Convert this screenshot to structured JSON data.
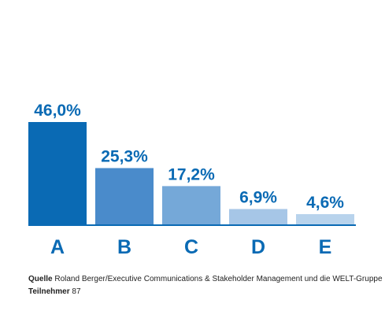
{
  "chart_data": {
    "type": "bar",
    "categories": [
      "A",
      "B",
      "C",
      "D",
      "E"
    ],
    "values": [
      46.0,
      25.3,
      17.2,
      6.9,
      4.6
    ],
    "value_labels": [
      "46,0%",
      "25,3%",
      "17,2%",
      "6,9%",
      "4,6%"
    ],
    "bar_colors": [
      "#0a6ab4",
      "#4a8bcb",
      "#75a8d8",
      "#a6c6e7",
      "#b8d3ec"
    ],
    "label_color": "#0a6ab4",
    "axis_color": "#0a6ab4",
    "ylim": [
      0,
      50
    ],
    "grid": false,
    "title": "",
    "xlabel": "",
    "ylabel": ""
  },
  "footer": {
    "source_label": "Quelle",
    "source_text": "Roland Berger/Executive Communications & Stakeholder Management und die WELT-Gruppe",
    "participants_label": "Teilnehmer",
    "participants_value": "87"
  }
}
